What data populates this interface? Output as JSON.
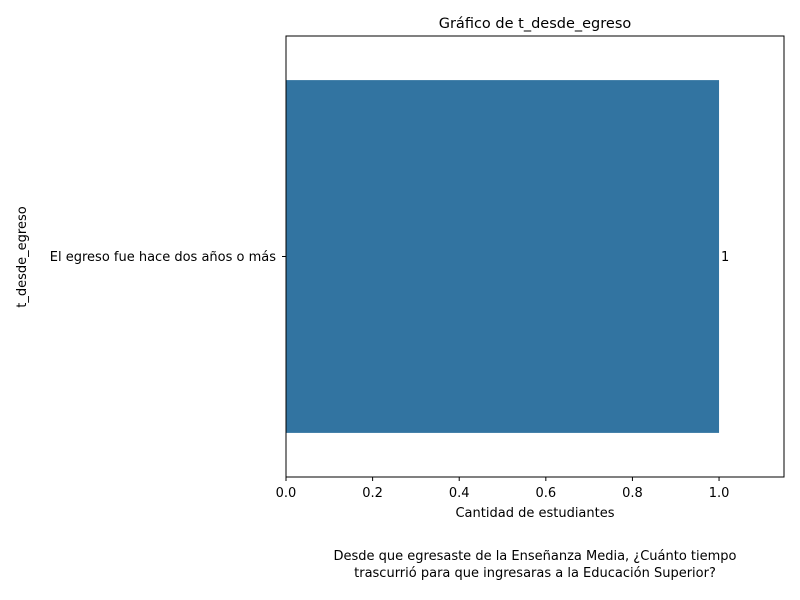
{
  "chart_data": {
    "type": "bar",
    "orientation": "horizontal",
    "title": "Gráfico de t_desde_egreso",
    "xlabel": "Cantidad de estudiantes",
    "ylabel": "t_desde_egreso",
    "categories": [
      "El egreso fue hace dos años o más"
    ],
    "values": [
      1
    ],
    "data_labels": [
      "1"
    ],
    "xlim": [
      0,
      1.15
    ],
    "xticks": [
      0.0,
      0.2,
      0.4,
      0.6,
      0.8,
      1.0
    ],
    "xtick_labels": [
      "0.0",
      "0.2",
      "0.4",
      "0.6",
      "0.8",
      "1.0"
    ],
    "grid": false,
    "bar_color": "#3274a1"
  },
  "caption": {
    "line1": "Desde que egresaste de la Enseñanza Media, ¿Cuánto tiempo",
    "line2": "trascurrió para que ingresaras a la Educación Superior?"
  }
}
